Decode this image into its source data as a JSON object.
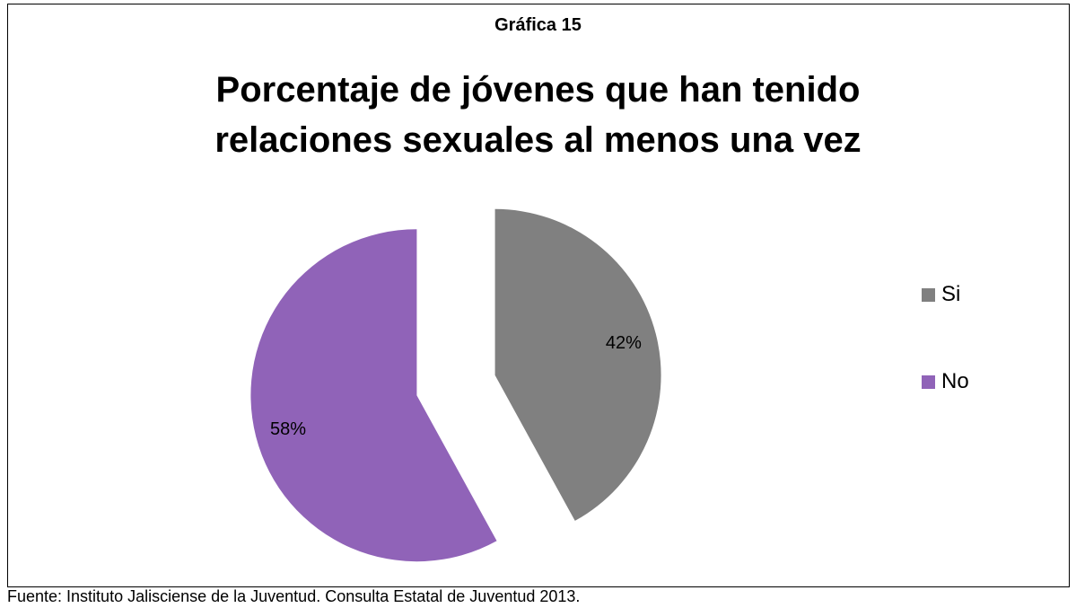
{
  "caption": "Gráfica 15",
  "source": "Fuente: Instituto Jalisciense de la Juventud. Consulta Estatal de Juventud 2013.",
  "chart_data": {
    "type": "pie",
    "title_lines": [
      "Porcentaje de jóvenes que han tenido",
      "relaciones sexuales al menos una vez"
    ],
    "slices": [
      {
        "label": "Si",
        "value": 42,
        "display": "42%",
        "color": "#808080"
      },
      {
        "label": "No",
        "value": 58,
        "display": "58%",
        "color": "#9063b8"
      }
    ],
    "legend_position": "right",
    "exploded": true
  }
}
